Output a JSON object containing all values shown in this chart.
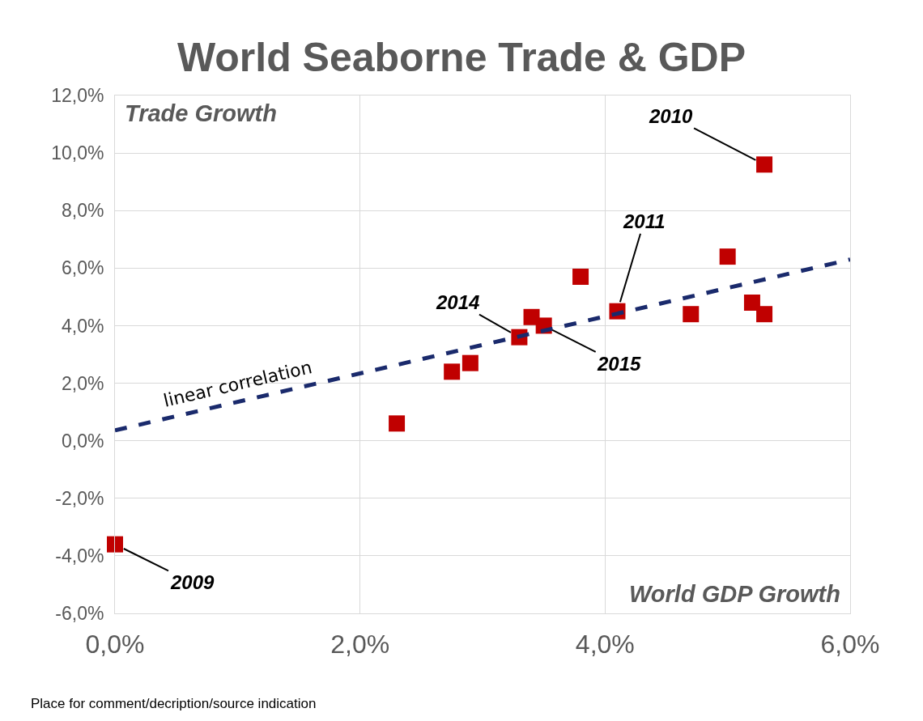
{
  "chart_data": {
    "type": "scatter",
    "title": "World Seaborne Trade & GDP",
    "xlabel": "World GDP Growth",
    "ylabel": "Trade Growth",
    "x": [
      0.0,
      2.3,
      2.75,
      2.9,
      3.3,
      3.4,
      3.5,
      3.8,
      4.1,
      4.7,
      5.0,
      5.2,
      5.3,
      5.3
    ],
    "series": [
      {
        "color": "#c00000",
        "values": [
          -3.6,
          0.6,
          2.4,
          2.7,
          3.6,
          4.3,
          4.0,
          5.7,
          4.5,
          4.4,
          6.4,
          4.8,
          4.4,
          9.6
        ],
        "marker": "square"
      },
      {
        "type": "line",
        "name": "linear correlation",
        "color": "#1a2a6c",
        "x": [
          0,
          6
        ],
        "values": [
          0.36,
          6.3
        ],
        "line_style": "dashed",
        "marker": "none"
      }
    ],
    "xlim": [
      0,
      6
    ],
    "ylim": [
      -6,
      12
    ],
    "xticks": [
      {
        "value": 0,
        "label": "0,0%"
      },
      {
        "value": 2,
        "label": "2,0%"
      },
      {
        "value": 4,
        "label": "4,0%"
      },
      {
        "value": 6,
        "label": "6,0%"
      }
    ],
    "yticks": [
      {
        "value": -6,
        "label": "-6,0%"
      },
      {
        "value": -4,
        "label": "-4,0%"
      },
      {
        "value": -2,
        "label": "-2,0%"
      },
      {
        "value": 0,
        "label": "0,0%"
      },
      {
        "value": 2,
        "label": "2,0%"
      },
      {
        "value": 4,
        "label": "4,0%"
      },
      {
        "value": 6,
        "label": "6,0%"
      },
      {
        "value": 8,
        "label": "8,0%"
      },
      {
        "value": 10,
        "label": "10,0%"
      },
      {
        "value": 12,
        "label": "12,0%"
      }
    ],
    "annotations": [
      {
        "text": "2009",
        "x": 0.0,
        "y": -3.6
      },
      {
        "text": "2010",
        "x": 5.3,
        "y": 9.6
      },
      {
        "text": "2011",
        "x": 4.1,
        "y": 4.5
      },
      {
        "text": "2014",
        "x": 3.3,
        "y": 3.6
      },
      {
        "text": "2015",
        "x": 3.5,
        "y": 4.0
      },
      "Place for comment/decription/source indication"
    ],
    "grid": true,
    "legend": false
  }
}
